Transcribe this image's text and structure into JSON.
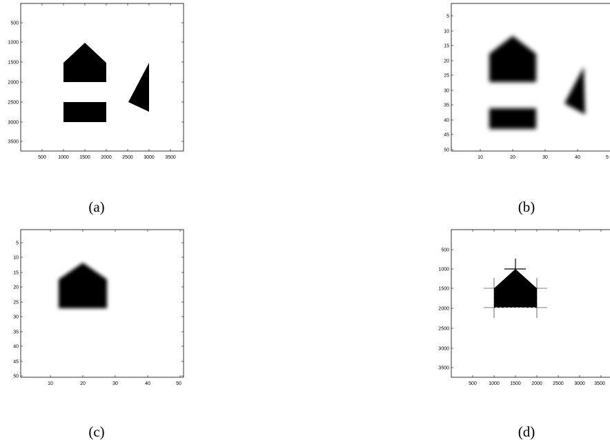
{
  "figure": {
    "panels": [
      {
        "id": "a",
        "caption": "(a)",
        "xticks": [
          "500",
          "1000",
          "1500",
          "2000",
          "2500",
          "3000",
          "3500"
        ],
        "yticks": [
          "500",
          "1000",
          "1500",
          "2000",
          "2500",
          "3000",
          "3500"
        ],
        "content": "binary image with pentagon, rectangle and triangle"
      },
      {
        "id": "b",
        "caption": "(b)",
        "xticks": [
          "10",
          "20",
          "30",
          "40",
          "5"
        ],
        "yticks": [
          "5",
          "10",
          "15",
          "20",
          "25",
          "30",
          "35",
          "40",
          "45",
          "50"
        ],
        "content": "blurred low-resolution image of three shapes"
      },
      {
        "id": "c",
        "caption": "(c)",
        "xticks": [
          "10",
          "20",
          "30",
          "40",
          "50"
        ],
        "yticks": [
          "5",
          "10",
          "15",
          "20",
          "25",
          "30",
          "35",
          "40",
          "45",
          "50"
        ],
        "content": "blurred pentagon"
      },
      {
        "id": "d",
        "caption": "(d)",
        "xticks": [
          "500",
          "1000",
          "1500",
          "2000",
          "2500",
          "3000",
          "3500"
        ],
        "yticks": [
          "500",
          "1000",
          "1500",
          "2000",
          "2500",
          "3000",
          "3500"
        ],
        "content": "recovered pentagon with vertex cross markers"
      }
    ]
  }
}
